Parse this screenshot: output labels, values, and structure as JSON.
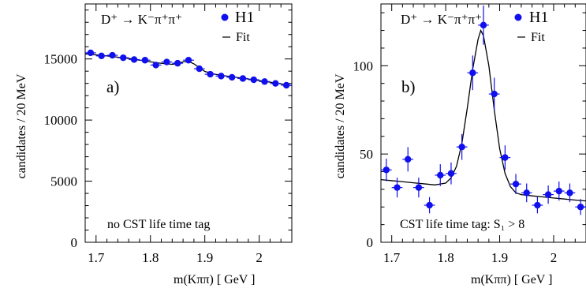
{
  "chart_data": [
    {
      "type": "scatter",
      "panel_label": "a)",
      "reaction_text": "D⁺ → K⁻π⁺π⁺",
      "annotation": "no CST life time tag",
      "xlabel": "m(Kππ)  [ GeV ]",
      "ylabel": "candidates / 20 MeV",
      "xlim": [
        1.68,
        2.06
      ],
      "ylim": [
        0,
        19500
      ],
      "xticks": [
        1.7,
        1.8,
        1.9,
        2
      ],
      "xtick_labels": [
        "1.7",
        "1.8",
        "1.9",
        "2"
      ],
      "yticks": [
        0,
        5000,
        10000,
        15000
      ],
      "ytick_labels": [
        "0",
        "5000",
        "10000",
        "15000"
      ],
      "legend": {
        "data_label": "H1",
        "fit_label": "Fit",
        "position": "top-right"
      },
      "colors": {
        "data": "#1010ee",
        "fit": "#000000"
      },
      "series": [
        {
          "name": "H1",
          "x": [
            1.69,
            1.71,
            1.73,
            1.75,
            1.77,
            1.79,
            1.81,
            1.83,
            1.85,
            1.87,
            1.89,
            1.91,
            1.93,
            1.95,
            1.97,
            1.99,
            2.01,
            2.03,
            2.05
          ],
          "y": [
            15500,
            15250,
            15300,
            15100,
            14950,
            14900,
            14500,
            14750,
            14650,
            14900,
            14200,
            13750,
            13600,
            13500,
            13400,
            13300,
            13150,
            13000,
            12850
          ],
          "yerr": [
            130,
            130,
            130,
            130,
            130,
            130,
            130,
            130,
            130,
            130,
            130,
            130,
            130,
            130,
            130,
            130,
            130,
            130,
            130
          ]
        },
        {
          "name": "Fit",
          "type": "line",
          "x": [
            1.68,
            1.7,
            1.72,
            1.74,
            1.76,
            1.78,
            1.8,
            1.82,
            1.84,
            1.85,
            1.86,
            1.87,
            1.88,
            1.89,
            1.9,
            1.92,
            1.94,
            1.96,
            1.98,
            2.0,
            2.02,
            2.04,
            2.06
          ],
          "y": [
            15420,
            15330,
            15250,
            15140,
            15040,
            14900,
            14760,
            14640,
            14560,
            14620,
            14760,
            14800,
            14600,
            14280,
            13980,
            13740,
            13600,
            13480,
            13360,
            13230,
            13100,
            12960,
            12830
          ]
        }
      ]
    },
    {
      "type": "scatter",
      "panel_label": "b)",
      "reaction_text": "D⁺ → K⁻π⁺π⁺",
      "annotation": "CST life time tag:  S₁ > 8",
      "xlabel": "m(Kππ)  [ GeV ]",
      "ylabel": "candidates / 20 MeV",
      "xlim": [
        1.68,
        2.06
      ],
      "ylim": [
        0,
        135
      ],
      "xticks": [
        1.7,
        1.8,
        1.9,
        2
      ],
      "xtick_labels": [
        "1.7",
        "1.8",
        "1.9",
        "2"
      ],
      "yticks": [
        0,
        50,
        100
      ],
      "ytick_labels": [
        "0",
        "50",
        "100"
      ],
      "legend": {
        "data_label": "H1",
        "fit_label": "Fit",
        "position": "top-right"
      },
      "colors": {
        "data": "#1010ee",
        "fit": "#000000"
      },
      "series": [
        {
          "name": "H1",
          "x": [
            1.69,
            1.71,
            1.73,
            1.75,
            1.77,
            1.79,
            1.81,
            1.83,
            1.85,
            1.87,
            1.89,
            1.91,
            1.93,
            1.95,
            1.97,
            1.99,
            2.01,
            2.03,
            2.05
          ],
          "y": [
            41,
            31,
            47,
            31,
            21,
            38,
            39,
            54,
            96,
            123,
            84,
            48,
            33,
            28,
            21,
            27,
            29,
            28,
            20
          ],
          "yerr": [
            6.4,
            5.6,
            6.9,
            5.6,
            4.6,
            6.2,
            6.2,
            7.3,
            9.8,
            11.1,
            9.2,
            6.9,
            5.7,
            5.3,
            4.6,
            5.2,
            5.4,
            5.3,
            4.5
          ]
        },
        {
          "name": "Fit",
          "type": "line",
          "x": [
            1.68,
            1.7,
            1.72,
            1.74,
            1.76,
            1.78,
            1.8,
            1.81,
            1.82,
            1.83,
            1.84,
            1.85,
            1.86,
            1.865,
            1.87,
            1.88,
            1.89,
            1.9,
            1.91,
            1.92,
            1.93,
            1.94,
            1.96,
            1.98,
            2.0,
            2.02,
            2.04,
            2.06
          ],
          "y": [
            35.5,
            34.9,
            34.3,
            33.7,
            33.1,
            32.5,
            33.5,
            36.5,
            43,
            56,
            76,
            98,
            115,
            120,
            117,
            100,
            75,
            53,
            39,
            31.5,
            28,
            27,
            26.3,
            25.7,
            25.1,
            24.5,
            23.9,
            23.4
          ]
        }
      ]
    }
  ]
}
